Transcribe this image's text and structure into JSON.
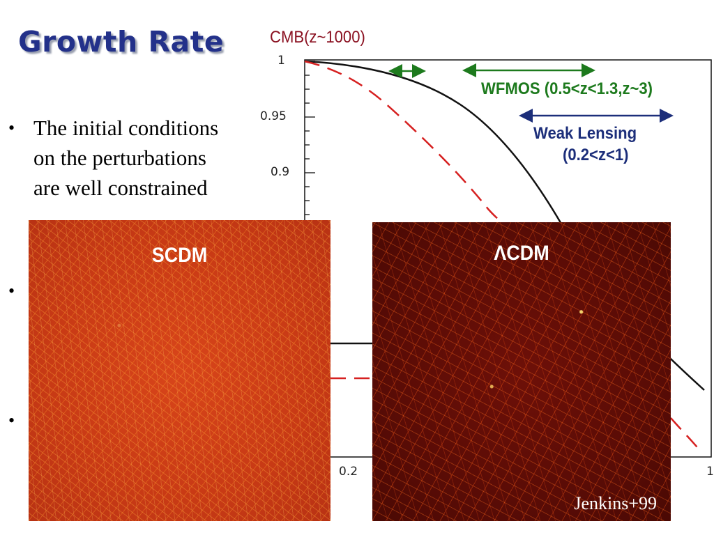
{
  "slide": {
    "title": "Growth Rate",
    "bullets": [
      {
        "marker": "•",
        "text": "The initial conditions on the perturbations are well constrained"
      },
      {
        "marker": "•",
        "text": ""
      },
      {
        "marker": "•",
        "text": ""
      }
    ]
  },
  "plot": {
    "annotations": {
      "cmb": "CMB(z~1000)",
      "wfmos": "WFMOS (0.5<z<1.3,z~3)",
      "weak_lensing_line1": "Weak Lensing",
      "weak_lensing_line2": "(0.2<z<1)"
    },
    "y_ticks": [
      "1",
      "0.95",
      "0.9"
    ],
    "x_ticks": [
      "0.2",
      "1"
    ],
    "colors": {
      "solid_curve": "#111111",
      "dashed_curve": "#d62020",
      "cmb_text": "#8a1020",
      "wfmos": "#1d7a1d",
      "weak_lensing": "#1c2e7a"
    }
  },
  "images": {
    "left_label": "SCDM",
    "right_label": "ΛCDM",
    "credit": "Jenkins+99"
  }
}
